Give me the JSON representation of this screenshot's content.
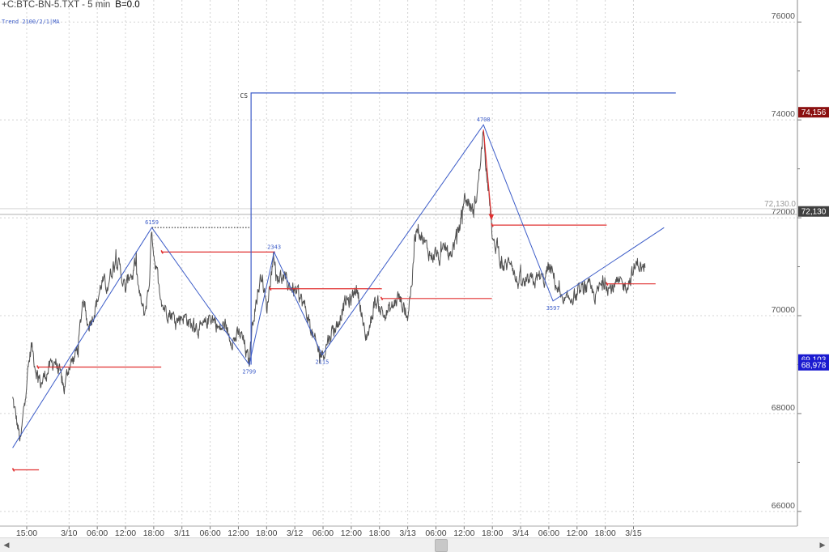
{
  "header": {
    "symbol_text": "+C:BTC-BN-5.TXT - 5 min",
    "b_text": "B=0.0",
    "indicator_text": "Trend 2100/2/1|MA"
  },
  "colors": {
    "price": "#505050",
    "zigzag": "#3c5cc8",
    "level": "#e03030",
    "grid": "#d4d4d4",
    "badge_dark_red": "#8b1010",
    "badge_dark": "#404040",
    "badge_blue": "#1a1ad0"
  },
  "chart_data": {
    "type": "line",
    "x_unit": "hours since 3/9 15:00",
    "xlim": [
      0,
      138
    ],
    "ylim": [
      65700,
      76450
    ],
    "y_ticks": [
      66000,
      68000,
      70000,
      72000,
      74000,
      76000
    ],
    "y_tick_labels": [
      "66000",
      "68000",
      "70000",
      "72000",
      "74000",
      "76000"
    ],
    "x_ticks": [
      {
        "x": 0,
        "label": "15:00"
      },
      {
        "x": 9,
        "label": "3/10"
      },
      {
        "x": 15,
        "label": "06:00"
      },
      {
        "x": 21,
        "label": "12:00"
      },
      {
        "x": 27,
        "label": "18:00"
      },
      {
        "x": 33,
        "label": "3/11"
      },
      {
        "x": 39,
        "label": "06:00"
      },
      {
        "x": 45,
        "label": "12:00"
      },
      {
        "x": 51,
        "label": "18:00"
      },
      {
        "x": 57,
        "label": "3/12"
      },
      {
        "x": 63,
        "label": "06:00"
      },
      {
        "x": 69,
        "label": "12:00"
      },
      {
        "x": 75,
        "label": "18:00"
      },
      {
        "x": 81,
        "label": "3/13"
      },
      {
        "x": 87,
        "label": "06:00"
      },
      {
        "x": 93,
        "label": "12:00"
      },
      {
        "x": 99,
        "label": "18:00"
      },
      {
        "x": 105,
        "label": "3/14"
      },
      {
        "x": 111,
        "label": "06:00"
      },
      {
        "x": 117,
        "label": "12:00"
      },
      {
        "x": 123,
        "label": "18:00"
      },
      {
        "x": 129,
        "label": "3/15"
      }
    ],
    "price_key_points": [
      [
        -3,
        68300
      ],
      [
        -1.3,
        67400
      ],
      [
        0,
        68700
      ],
      [
        1,
        69400
      ],
      [
        2,
        68900
      ],
      [
        3,
        68600
      ],
      [
        4,
        68800
      ],
      [
        6,
        69100
      ],
      [
        8,
        68500
      ],
      [
        9,
        69000
      ],
      [
        10,
        69100
      ],
      [
        11,
        69400
      ],
      [
        12,
        70400
      ],
      [
        13,
        69800
      ],
      [
        14,
        70000
      ],
      [
        15,
        70300
      ],
      [
        16,
        70700
      ],
      [
        17,
        70600
      ],
      [
        18,
        70900
      ],
      [
        19,
        71200
      ],
      [
        20,
        70900
      ],
      [
        21,
        70500
      ],
      [
        22,
        70900
      ],
      [
        22.5,
        70800
      ],
      [
        23,
        71100
      ],
      [
        24,
        70400
      ],
      [
        25,
        70000
      ],
      [
        26,
        70600
      ],
      [
        26.6,
        71800
      ],
      [
        27,
        71300
      ],
      [
        28,
        70700
      ],
      [
        29,
        70200
      ],
      [
        30,
        70100
      ],
      [
        31,
        70000
      ],
      [
        32,
        69900
      ],
      [
        33,
        70000
      ],
      [
        34,
        69950
      ],
      [
        35,
        69800
      ],
      [
        36,
        69800
      ],
      [
        37,
        69700
      ],
      [
        38,
        69800
      ],
      [
        39,
        70000
      ],
      [
        40,
        69900
      ],
      [
        41,
        69700
      ],
      [
        42,
        69800
      ],
      [
        43,
        69600
      ],
      [
        44,
        69500
      ],
      [
        45,
        69600
      ],
      [
        45.5,
        69600
      ],
      [
        46,
        69500
      ],
      [
        47.3,
        69000
      ],
      [
        48,
        69900
      ],
      [
        49,
        70400
      ],
      [
        50,
        70900
      ],
      [
        51,
        70100
      ],
      [
        52,
        70900
      ],
      [
        52.6,
        71300
      ],
      [
        53,
        70800
      ],
      [
        54,
        70800
      ],
      [
        55,
        70700
      ],
      [
        56,
        70600
      ],
      [
        57,
        70500
      ],
      [
        58,
        70400
      ],
      [
        59,
        70200
      ],
      [
        60,
        69900
      ],
      [
        61,
        69500
      ],
      [
        62,
        69300
      ],
      [
        63,
        69200
      ],
      [
        64,
        69500
      ],
      [
        65,
        69700
      ],
      [
        66,
        69800
      ],
      [
        67,
        70100
      ],
      [
        68,
        70300
      ],
      [
        69,
        70300
      ],
      [
        70,
        70600
      ],
      [
        71,
        70200
      ],
      [
        72,
        69500
      ],
      [
        73,
        69800
      ],
      [
        74,
        70300
      ],
      [
        75,
        70200
      ],
      [
        76,
        70000
      ],
      [
        77,
        70100
      ],
      [
        78,
        70200
      ],
      [
        79,
        70400
      ],
      [
        80,
        70200
      ],
      [
        81,
        70000
      ],
      [
        82,
        70800
      ],
      [
        82.5,
        71500
      ],
      [
        83,
        71900
      ],
      [
        84,
        71600
      ],
      [
        85,
        71400
      ],
      [
        86,
        71200
      ],
      [
        87,
        71300
      ],
      [
        88,
        71100
      ],
      [
        89,
        71400
      ],
      [
        90,
        71200
      ],
      [
        91,
        71500
      ],
      [
        92,
        71800
      ],
      [
        93,
        72400
      ],
      [
        94,
        72300
      ],
      [
        95,
        72100
      ],
      [
        96,
        72700
      ],
      [
        97,
        73700
      ],
      [
        98,
        72800
      ],
      [
        99,
        71600
      ],
      [
        99.5,
        71300
      ],
      [
        100,
        71500
      ],
      [
        101,
        71000
      ],
      [
        102,
        71000
      ],
      [
        103,
        71200
      ],
      [
        104,
        70700
      ],
      [
        105,
        70700
      ],
      [
        106,
        70600
      ],
      [
        107,
        70700
      ],
      [
        108,
        70700
      ],
      [
        109,
        70800
      ],
      [
        110,
        70700
      ],
      [
        111,
        71000
      ],
      [
        112,
        70800
      ],
      [
        113,
        70500
      ],
      [
        114,
        70200
      ],
      [
        115,
        70300
      ],
      [
        116,
        70400
      ],
      [
        117,
        70400
      ],
      [
        118,
        70500
      ],
      [
        119,
        70600
      ],
      [
        120,
        70500
      ],
      [
        121,
        70400
      ],
      [
        122,
        70600
      ],
      [
        123,
        70700
      ],
      [
        124,
        70550
      ],
      [
        125,
        70600
      ],
      [
        126,
        70650
      ],
      [
        127,
        70600
      ],
      [
        128,
        70700
      ],
      [
        129,
        70900
      ],
      [
        130,
        71100
      ],
      [
        131,
        70900
      ],
      [
        131.5,
        71000
      ]
    ],
    "zigzag": {
      "points": [
        [
          -3,
          67300
        ],
        [
          26.6,
          71800
        ],
        [
          47.3,
          69000
        ],
        [
          52.6,
          71300
        ],
        [
          62.8,
          69200
        ],
        [
          97.1,
          73900
        ],
        [
          111.9,
          70300
        ],
        [
          135.5,
          71800
        ]
      ],
      "pivot_labels": [
        {
          "x": 26.6,
          "y": 71800,
          "text": "6159",
          "pos": "above"
        },
        {
          "x": 47.3,
          "y": 69000,
          "text": "2799",
          "pos": "below"
        },
        {
          "x": 52.6,
          "y": 71300,
          "text": "2343",
          "pos": "above"
        },
        {
          "x": 62.8,
          "y": 69200,
          "text": "2115",
          "pos": "below"
        },
        {
          "x": 97.1,
          "y": 73900,
          "text": "4708",
          "pos": "above"
        },
        {
          "x": 111.9,
          "y": 70300,
          "text": "3597",
          "pos": "below"
        }
      ]
    },
    "level_lines": [
      {
        "x1": -3,
        "x2": 2.6,
        "y": 66850
      },
      {
        "x1": 2.2,
        "x2": 28.6,
        "y": 68950
      },
      {
        "x1": 28.6,
        "x2": 52.8,
        "y": 71300
      },
      {
        "x1": 51.6,
        "x2": 75.5,
        "y": 70550
      },
      {
        "x1": 75.3,
        "x2": 98.9,
        "y": 70350
      },
      {
        "x1": 98.8,
        "x2": 123.3,
        "y": 71850
      },
      {
        "x1": 123.2,
        "x2": 133.7,
        "y": 70650
      }
    ],
    "dotted_line": {
      "x1": 26.6,
      "x2": 47.4,
      "y": 71800
    },
    "arrow": {
      "x1": 97.1,
      "y1": 73800,
      "x2": 98.8,
      "y2": 72000
    },
    "cs": {
      "label": "CS",
      "x": 47.7,
      "y_bottom": 69000,
      "y_top": 74550,
      "x_end": 138
    },
    "hline_gray": {
      "y": 72070
    },
    "hline_gray_label": "72,130.0",
    "price_badges": [
      {
        "text": "74,156",
        "value": 74156,
        "color": "#8b1010"
      },
      {
        "text": "72,130",
        "value": 72130,
        "color": "#404040"
      },
      {
        "text": "69,103",
        "value": 69103,
        "color": "#1a1ad0"
      },
      {
        "text": "68,978",
        "value": 68978,
        "color": "#1a1ad0"
      }
    ]
  }
}
